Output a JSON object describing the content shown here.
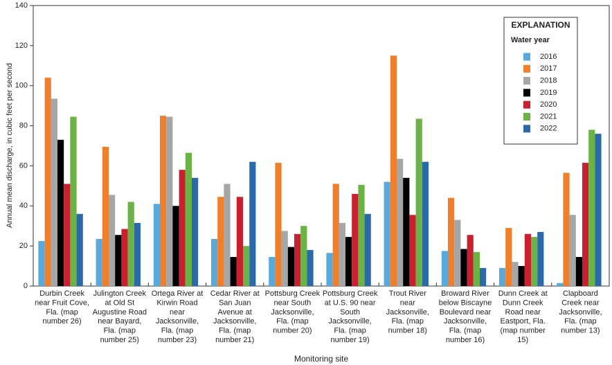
{
  "chart_data": {
    "type": "bar",
    "y_label": "Annual mean discharge, in cubic feet per second",
    "x_label": "Monitoring site",
    "legend_title": "EXPLANATION",
    "legend_subtitle": "Water year",
    "legend_position": "top-right",
    "categories": [
      "Durbin Creek\nnear Fruit Cove,\nFla. (map\nnumber 26)",
      "Julington Creek\nat Old St\nAugustine Road\nnear Bayard,\nFla. (map\nnumber 25)",
      "Ortega River at\nKirwin Road\nnear\nJacksonville,\nFla. (map\nnumber 23)",
      "Cedar River at\nSan Juan\nAvenue at\nJacksonville,\nFla. (map\nnumber 21)",
      "Pottsburg Creek\nnear South\nJacksonville,\nFla. (map\nnumber 20)",
      "Pottsburg Creek\nat U.S. 90 near\nSouth\nJacksonville,\nFla. (map\nnumber 19)",
      "Trout River\nnear\nJacksonville,\nFla. (map\nnumber 18)",
      "Broward River\nbelow Biscayne\nBoulevard near\nJacksonville,\nFla. (map\nnumber 16)",
      "Dunn Creek at\nDunn Creek\nRoad near\nEastport, Fla.\n(map number\n15)",
      "Clapboard\nCreek near\nJacksonville,\nFla. (map\nnumber 13)"
    ],
    "series": [
      {
        "name": "2016",
        "color": "#5aa9dc",
        "values": [
          22.5,
          23.5,
          41,
          23.5,
          14.5,
          16.5,
          52,
          17.5,
          9,
          1.5
        ]
      },
      {
        "name": "2017",
        "color": "#f07f2b",
        "values": [
          104,
          69.5,
          85,
          44.5,
          61.5,
          51,
          115,
          44,
          29,
          56.5
        ]
      },
      {
        "name": "2018",
        "color": "#a6a6a6",
        "values": [
          93.5,
          45.5,
          84.5,
          51,
          27.5,
          31.5,
          63.5,
          33,
          12,
          35.5
        ]
      },
      {
        "name": "2019",
        "color": "#000000",
        "values": [
          73,
          25.5,
          40,
          14.5,
          19.5,
          24.5,
          54,
          18.5,
          10,
          14.5
        ]
      },
      {
        "name": "2020",
        "color": "#c8202e",
        "values": [
          51,
          28.5,
          58,
          44.5,
          26,
          46,
          35.5,
          25.5,
          26,
          61.5
        ]
      },
      {
        "name": "2021",
        "color": "#6ab344",
        "values": [
          84.5,
          42,
          66.5,
          20,
          30,
          50.5,
          83.5,
          17,
          24.5,
          78
        ]
      },
      {
        "name": "2022",
        "color": "#2b6aa8",
        "values": [
          36,
          31.5,
          54,
          62,
          18,
          36,
          62,
          9,
          27,
          76
        ]
      }
    ],
    "ylim": [
      0,
      140
    ],
    "yticks": [
      0,
      20,
      40,
      60,
      80,
      100,
      120,
      140
    ],
    "grid": false
  }
}
